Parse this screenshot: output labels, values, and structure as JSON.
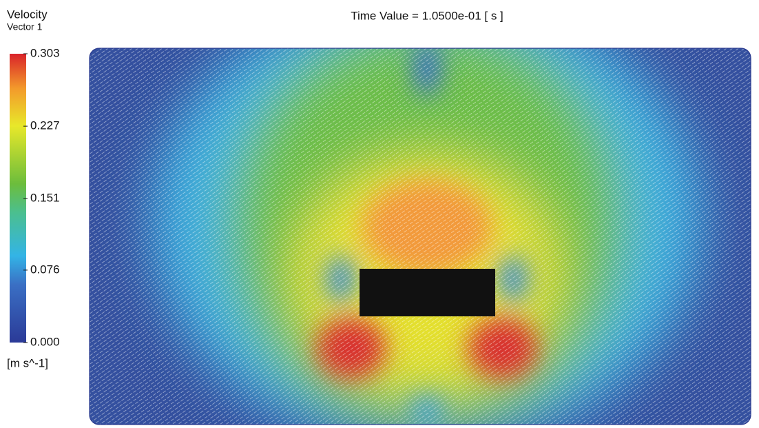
{
  "header": {
    "title": "Time Value = 1.0500e-01 [ s ]"
  },
  "legend": {
    "title": "Velocity",
    "subtitle": "Vector 1",
    "range": [
      0,
      0.303
    ],
    "ticks": [
      0.303,
      0.227,
      0.151,
      0.076,
      {
        "value": 0,
        "label": "0.000"
      }
    ],
    "unit": "[m s^-1]"
  }
}
